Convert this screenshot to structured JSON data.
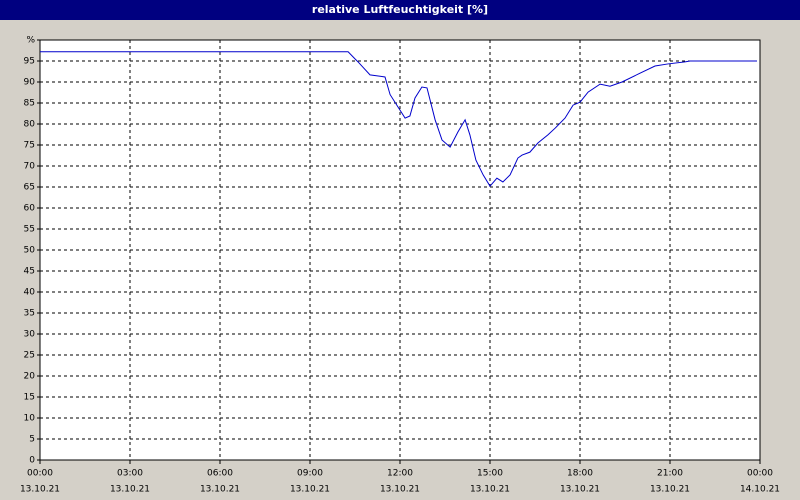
{
  "chart_data": {
    "type": "line",
    "title": "relative Luftfeuchtigkeit [%]",
    "x": [
      0,
      10.27,
      10.5,
      10.6,
      10.73,
      11,
      11.5,
      11.67,
      12.17,
      12.33,
      12.5,
      12.73,
      12.9,
      13.17,
      13.4,
      13.67,
      13.93,
      14.17,
      14.33,
      14.53,
      14.77,
      15,
      15.23,
      15.43,
      15.67,
      15.93,
      16.07,
      16.33,
      16.6,
      16.93,
      17.17,
      17.5,
      17.77,
      18,
      18.27,
      18.67,
      19,
      19.4,
      20,
      20.5,
      20.93,
      21.5,
      21.67,
      23.9
    ],
    "series": [
      {
        "color": "#0000cc",
        "values": [
          97.2,
          97.2,
          95.5,
          94.8,
          93.8,
          91.7,
          91.2,
          87,
          81.4,
          81.9,
          86.2,
          88.8,
          88.6,
          81,
          76.2,
          74.5,
          78.1,
          81,
          77.4,
          71.4,
          67.9,
          65.2,
          67.1,
          66.2,
          67.9,
          71.9,
          72.6,
          73.3,
          75.5,
          77.4,
          79,
          81.4,
          84.5,
          85.2,
          87.6,
          89.5,
          89,
          90,
          92.1,
          93.8,
          94.3,
          94.8,
          95,
          95
        ]
      }
    ],
    "xlim": [
      0,
      24
    ],
    "xticks": [
      {
        "value": 0,
        "label": "00:00"
      },
      {
        "value": 3,
        "label": "03:00"
      },
      {
        "value": 6,
        "label": "06:00"
      },
      {
        "value": 9,
        "label": "09:00"
      },
      {
        "value": 12,
        "label": "12:00"
      },
      {
        "value": 15,
        "label": "15:00"
      },
      {
        "value": 18,
        "label": "18:00"
      },
      {
        "value": 21,
        "label": "21:00"
      },
      {
        "value": 24,
        "label": "00:00"
      }
    ],
    "xtick_dates": [
      "13.10.21",
      "13.10.21",
      "13.10.21",
      "13.10.21",
      "13.10.21",
      "13.10.21",
      "13.10.21",
      "13.10.21",
      "14.10.21"
    ],
    "ylim": [
      0,
      100
    ],
    "yticks": [
      0,
      5,
      10,
      15,
      20,
      25,
      30,
      35,
      40,
      45,
      50,
      55,
      60,
      65,
      70,
      75,
      80,
      85,
      90,
      95,
      {
        "value": 100,
        "label": "%"
      }
    ],
    "grid": true
  }
}
